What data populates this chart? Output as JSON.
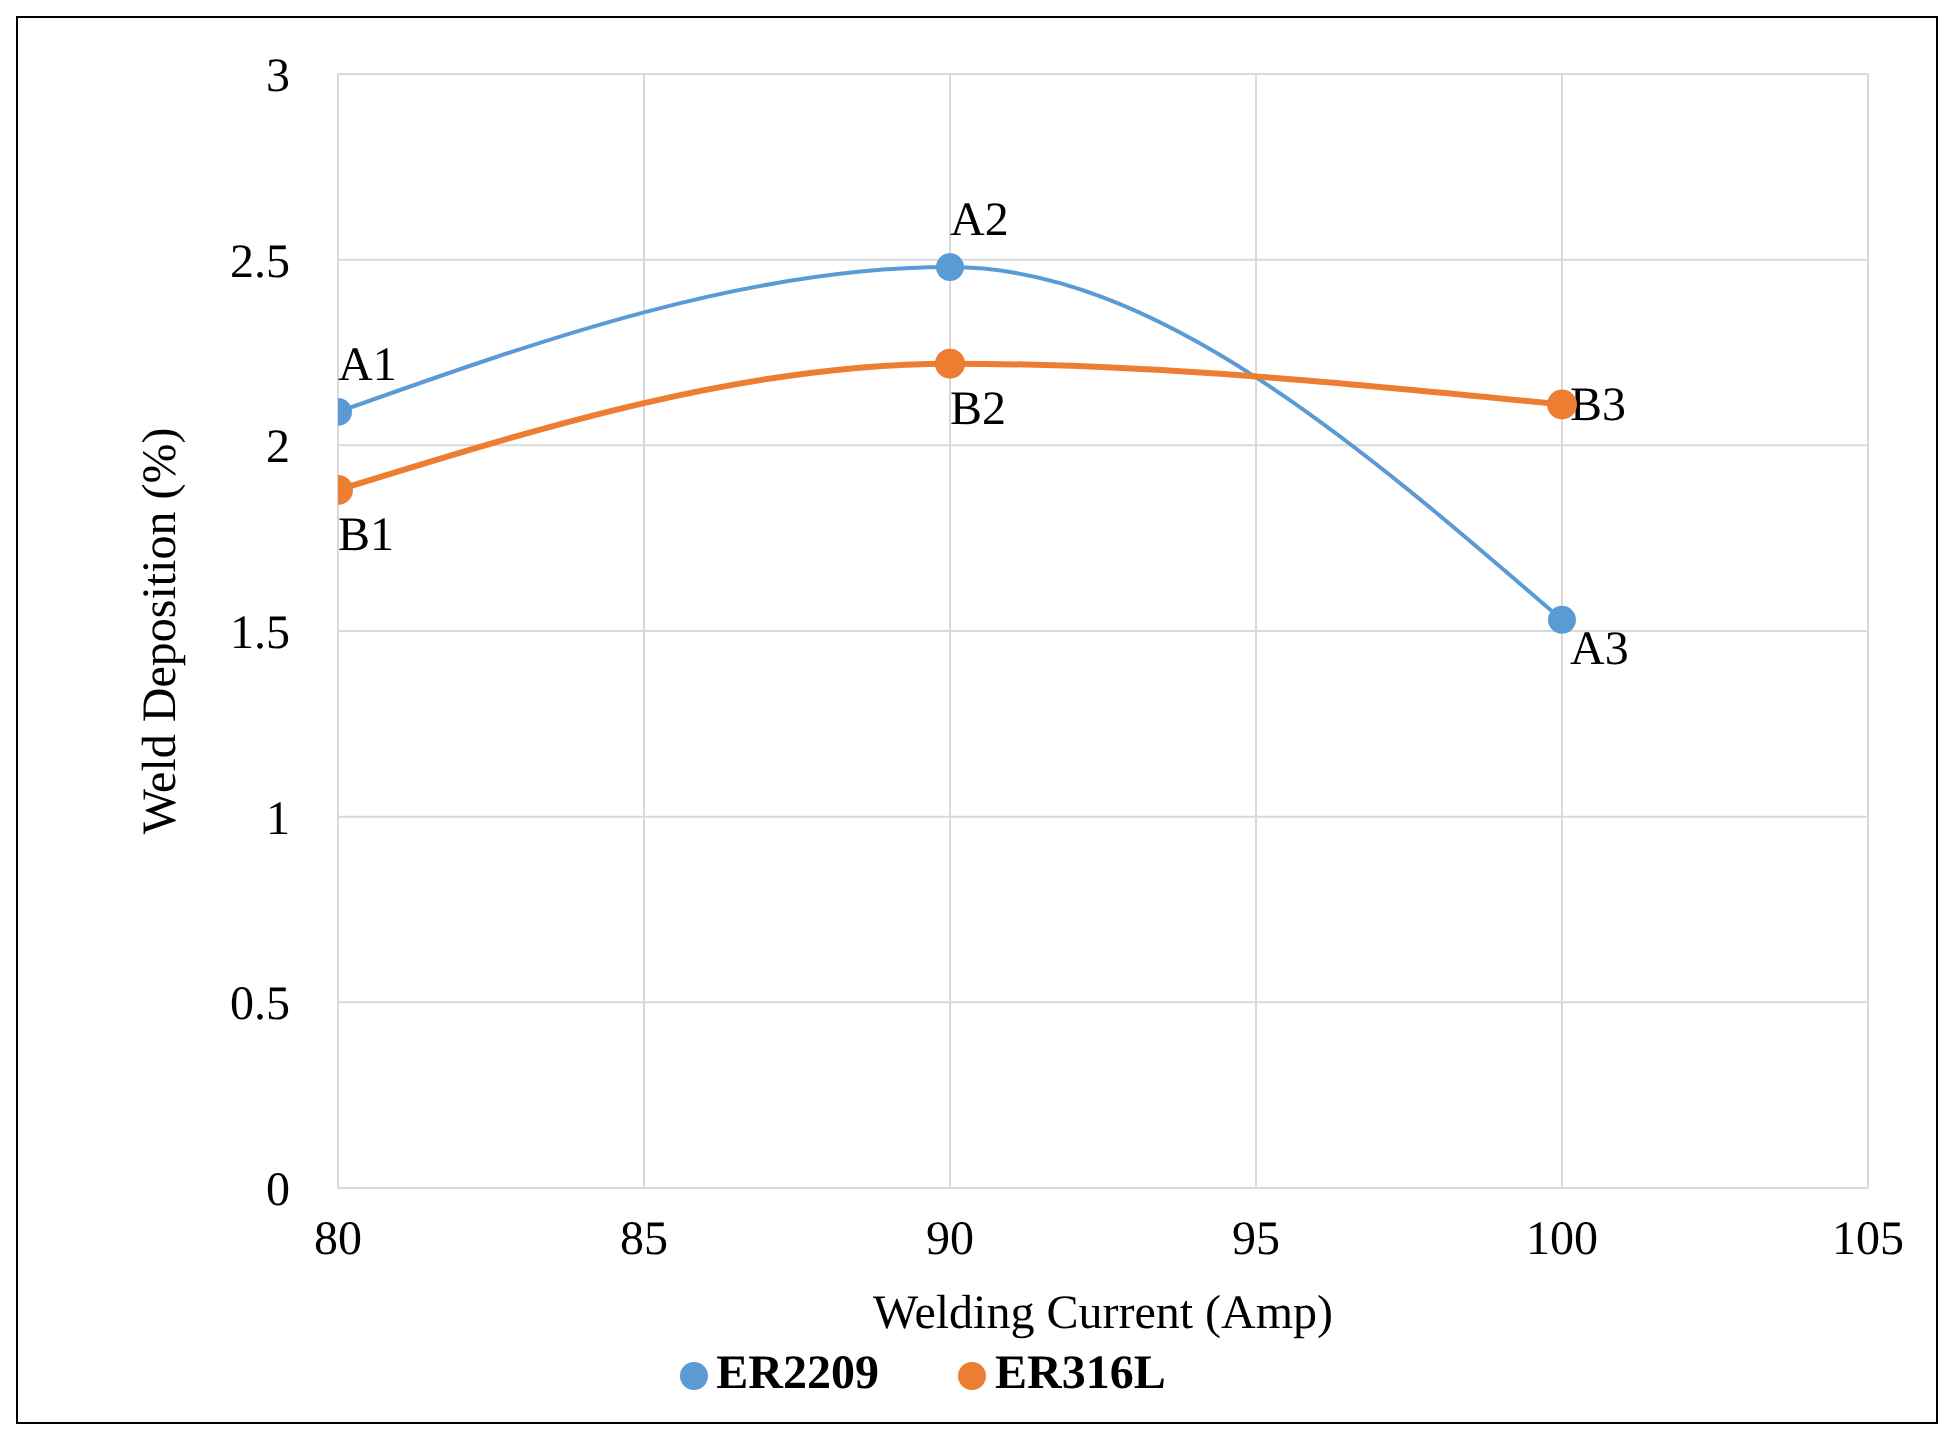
{
  "chart_data": {
    "type": "line",
    "xlabel": "Welding Current (Amp)",
    "ylabel": "Weld Deposition (%)",
    "x": [
      80,
      90,
      100
    ],
    "series": [
      {
        "name": "ER2209",
        "color": "#5b9bd5",
        "values": [
          2.09,
          2.48,
          1.53
        ]
      },
      {
        "name": "ER316L",
        "color": "#ed7d31",
        "values": [
          1.88,
          2.22,
          2.11
        ]
      }
    ],
    "xlim": [
      80,
      105
    ],
    "xticks": [
      80,
      85,
      90,
      95,
      100,
      105
    ],
    "ylim": [
      0,
      3
    ],
    "yticks": [
      0,
      0.5,
      1,
      1.5,
      2,
      2.5,
      3
    ],
    "grid": true,
    "legend": "bottom",
    "marker": "circle",
    "line_style": "solid",
    "annotations": [
      {
        "text": "A1",
        "x": 80,
        "y": 2.09
      },
      {
        "text": "A2",
        "x": 90,
        "y": 2.48
      },
      {
        "text": "A3",
        "x": 100,
        "y": 1.53
      },
      {
        "text": "B1",
        "x": 80,
        "y": 1.88
      },
      {
        "text": "B2",
        "x": 90,
        "y": 2.22
      },
      {
        "text": "B3",
        "x": 100,
        "y": 2.11
      }
    ]
  }
}
